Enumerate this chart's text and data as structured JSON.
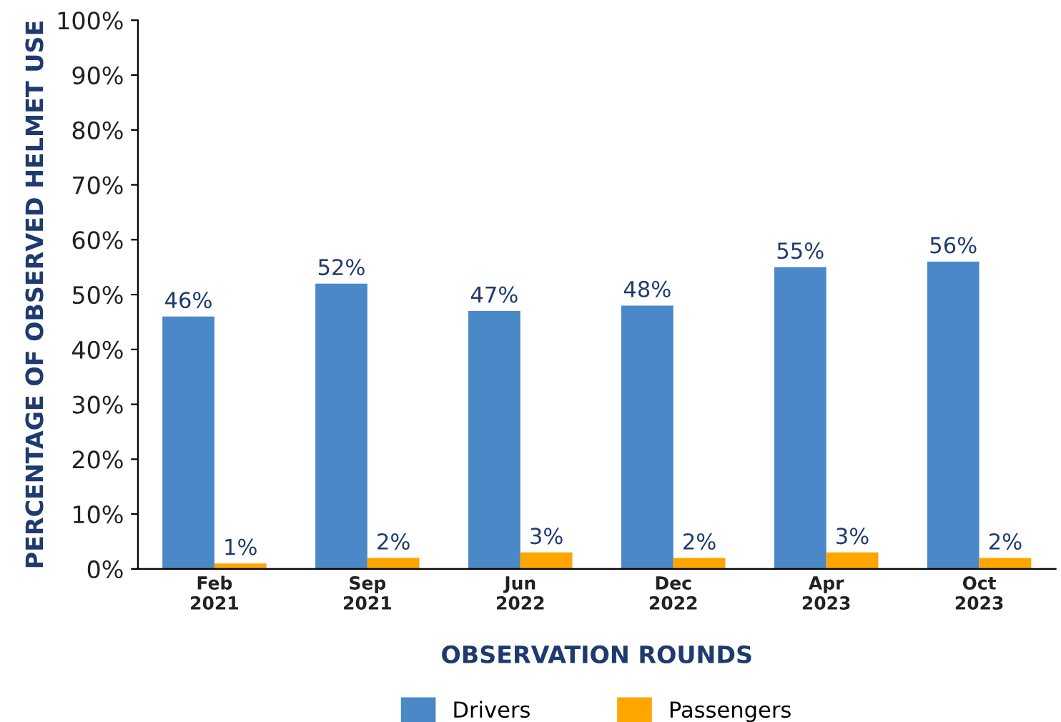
{
  "chart_data": {
    "type": "bar",
    "xlabel": "OBSERVATION ROUNDS",
    "ylabel": "PERCENTAGE OF OBSERVED HELMET USE",
    "categories": [
      "Feb\n2021",
      "Sep\n2021",
      "Jun\n2022",
      "Dec\n2022",
      "Apr\n2023",
      "Oct\n2023"
    ],
    "series": [
      {
        "name": "Drivers",
        "color": "#4a88c8",
        "values": [
          46,
          52,
          47,
          48,
          55,
          56
        ],
        "value_labels": [
          "46%",
          "52%",
          "47%",
          "48%",
          "55%",
          "56%"
        ]
      },
      {
        "name": "Passengers",
        "color": "#ffa500",
        "values": [
          1,
          2,
          3,
          2,
          3,
          2
        ],
        "value_labels": [
          "1%",
          "2%",
          "3%",
          "2%",
          "3%",
          "2%"
        ]
      }
    ],
    "ylim": [
      0,
      100
    ],
    "yticks": [
      {
        "value": 0,
        "label": "0%"
      },
      {
        "value": 10,
        "label": "10%"
      },
      {
        "value": 20,
        "label": "20%"
      },
      {
        "value": 30,
        "label": "30%"
      },
      {
        "value": 40,
        "label": "40%"
      },
      {
        "value": 50,
        "label": "50%"
      },
      {
        "value": 60,
        "label": "60%"
      },
      {
        "value": 70,
        "label": "70%"
      },
      {
        "value": 80,
        "label": "80%"
      },
      {
        "value": 90,
        "label": "90%"
      },
      {
        "value": 100,
        "label": "100%"
      }
    ],
    "grid": false,
    "legend": "bottom"
  }
}
